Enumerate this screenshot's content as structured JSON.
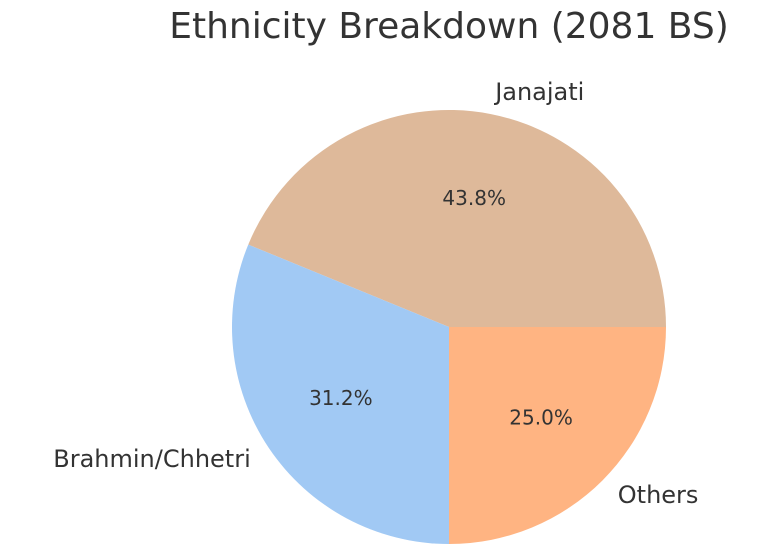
{
  "chart_data": {
    "type": "pie",
    "title": "Ethnicity Breakdown (2081 BS)",
    "categories": [
      "Janajati",
      "Brahmin/Chhetri",
      "Others"
    ],
    "values": [
      43.8,
      31.2,
      25.0
    ],
    "value_labels": [
      "43.8%",
      "31.2%",
      "25.0%"
    ],
    "colors": [
      "#deb99a",
      "#a1c9f4",
      "#ffb482"
    ]
  }
}
